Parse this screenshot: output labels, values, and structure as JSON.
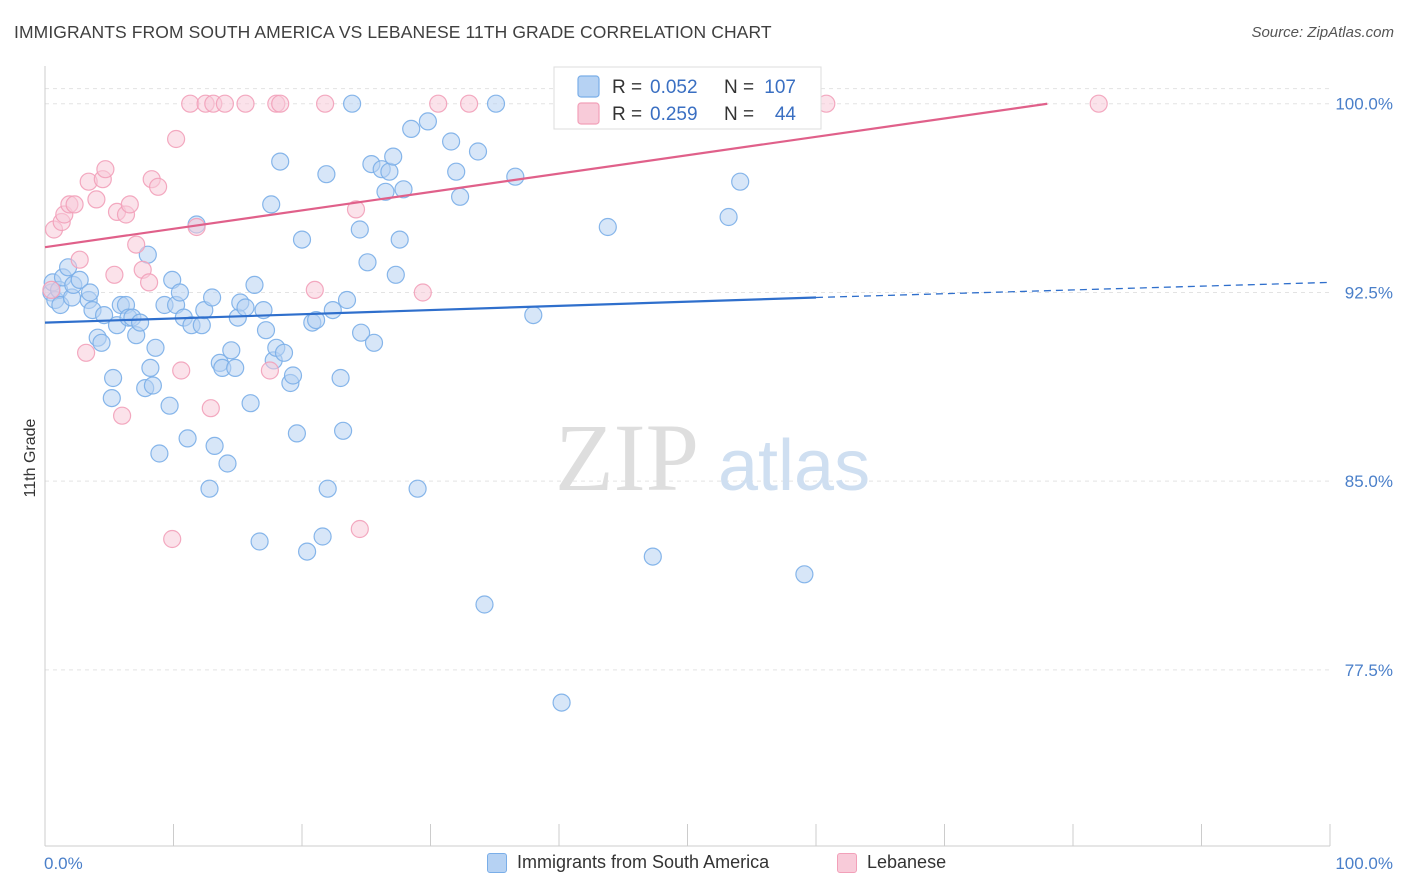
{
  "chart_data": {
    "type": "scatter",
    "title": "IMMIGRANTS FROM SOUTH AMERICA VS LEBANESE 11TH GRADE CORRELATION CHART",
    "source": "Source: ZipAtlas.com",
    "watermark": {
      "zip": "ZIP",
      "atlas": "atlas"
    },
    "ylabel": "11th Grade",
    "xlim": [
      0,
      100
    ],
    "ylim": [
      70.5,
      101.5
    ],
    "yticks": [
      {
        "value": 100.0,
        "label": "100.0%"
      },
      {
        "value": 92.5,
        "label": "92.5%"
      },
      {
        "value": 85.0,
        "label": "85.0%"
      },
      {
        "value": 77.5,
        "label": "77.5%"
      }
    ],
    "xticks": [
      {
        "value": 0,
        "label": "0.0%"
      },
      {
        "value": 100,
        "label": "100.0%"
      }
    ],
    "legend": [
      {
        "r_label": "R =",
        "r_value": "0.052",
        "n_label": "N =",
        "n_value": "107"
      },
      {
        "r_label": "R =",
        "r_value": "0.259",
        "n_label": "N =",
        "n_value": "44"
      }
    ],
    "series": [
      {
        "name": "Immigrants from South America",
        "color": "#7aaee8",
        "fill": "#b6d2f3",
        "line_color": "#2f6fcc",
        "trend": {
          "x0": 0,
          "y0": 91.3,
          "x1": 60,
          "y1": 92.3,
          "dash_x1": 100,
          "dash_y1": 92.9
        },
        "points": [
          [
            0.5,
            92.5
          ],
          [
            0.6,
            92.9
          ],
          [
            0.8,
            92.2
          ],
          [
            1.1,
            92.6
          ],
          [
            1.2,
            92.0
          ],
          [
            1.4,
            93.1
          ],
          [
            1.8,
            93.5
          ],
          [
            2.1,
            92.3
          ],
          [
            2.2,
            92.8
          ],
          [
            2.7,
            93.0
          ],
          [
            3.4,
            92.2
          ],
          [
            3.5,
            92.5
          ],
          [
            3.7,
            91.8
          ],
          [
            4.1,
            90.7
          ],
          [
            4.4,
            90.5
          ],
          [
            4.6,
            91.6
          ],
          [
            5.2,
            88.3
          ],
          [
            5.3,
            89.1
          ],
          [
            5.6,
            91.2
          ],
          [
            5.9,
            92.0
          ],
          [
            6.3,
            92.0
          ],
          [
            6.5,
            91.5
          ],
          [
            6.8,
            91.5
          ],
          [
            7.1,
            90.8
          ],
          [
            7.4,
            91.3
          ],
          [
            7.8,
            88.7
          ],
          [
            8.0,
            94.0
          ],
          [
            8.2,
            89.5
          ],
          [
            8.4,
            88.8
          ],
          [
            8.6,
            90.3
          ],
          [
            8.9,
            86.1
          ],
          [
            9.3,
            92.0
          ],
          [
            9.7,
            88.0
          ],
          [
            9.9,
            93.0
          ],
          [
            10.2,
            92.0
          ],
          [
            10.5,
            92.5
          ],
          [
            10.8,
            91.5
          ],
          [
            11.1,
            86.7
          ],
          [
            11.4,
            91.2
          ],
          [
            11.8,
            95.2
          ],
          [
            12.2,
            91.2
          ],
          [
            12.4,
            91.8
          ],
          [
            12.8,
            84.7
          ],
          [
            13.0,
            92.3
          ],
          [
            13.2,
            86.4
          ],
          [
            13.6,
            89.7
          ],
          [
            13.8,
            89.5
          ],
          [
            14.2,
            85.7
          ],
          [
            14.5,
            90.2
          ],
          [
            14.8,
            89.5
          ],
          [
            15.0,
            91.5
          ],
          [
            15.2,
            92.1
          ],
          [
            15.6,
            91.9
          ],
          [
            16.0,
            88.1
          ],
          [
            16.3,
            92.8
          ],
          [
            16.7,
            82.6
          ],
          [
            17.0,
            91.8
          ],
          [
            17.2,
            91.0
          ],
          [
            17.6,
            96.0
          ],
          [
            17.8,
            89.8
          ],
          [
            18.0,
            90.3
          ],
          [
            18.3,
            97.7
          ],
          [
            18.6,
            90.1
          ],
          [
            19.1,
            88.9
          ],
          [
            19.3,
            89.2
          ],
          [
            19.6,
            86.9
          ],
          [
            20.0,
            94.6
          ],
          [
            20.4,
            82.2
          ],
          [
            20.8,
            91.3
          ],
          [
            21.1,
            91.4
          ],
          [
            21.6,
            82.8
          ],
          [
            21.9,
            97.2
          ],
          [
            22.0,
            84.7
          ],
          [
            22.4,
            91.8
          ],
          [
            23.0,
            89.1
          ],
          [
            23.2,
            87.0
          ],
          [
            23.5,
            92.2
          ],
          [
            23.9,
            100.0
          ],
          [
            24.5,
            95.0
          ],
          [
            24.6,
            90.9
          ],
          [
            25.1,
            93.7
          ],
          [
            25.4,
            97.6
          ],
          [
            25.6,
            90.5
          ],
          [
            26.2,
            97.4
          ],
          [
            26.5,
            96.5
          ],
          [
            26.8,
            97.3
          ],
          [
            27.1,
            97.9
          ],
          [
            27.3,
            93.2
          ],
          [
            27.6,
            94.6
          ],
          [
            27.9,
            96.6
          ],
          [
            28.5,
            99.0
          ],
          [
            29.0,
            84.7
          ],
          [
            29.8,
            99.3
          ],
          [
            31.6,
            98.5
          ],
          [
            32.0,
            97.3
          ],
          [
            32.3,
            96.3
          ],
          [
            33.7,
            98.1
          ],
          [
            34.2,
            80.1
          ],
          [
            35.1,
            100.0
          ],
          [
            36.6,
            97.1
          ],
          [
            38.0,
            91.6
          ],
          [
            40.2,
            76.2
          ],
          [
            43.8,
            95.1
          ],
          [
            47.3,
            82.0
          ],
          [
            53.2,
            95.5
          ],
          [
            54.1,
            96.9
          ],
          [
            59.1,
            81.3
          ]
        ]
      },
      {
        "name": "Lebanese",
        "color": "#f2a0b9",
        "fill": "#f8cbd9",
        "line_color": "#e0608a",
        "trend": {
          "x0": 0,
          "y0": 94.3,
          "x1": 78,
          "y1": 100.0
        },
        "points": [
          [
            0.5,
            92.6
          ],
          [
            0.7,
            95.0
          ],
          [
            1.3,
            95.3
          ],
          [
            1.5,
            95.6
          ],
          [
            1.9,
            96.0
          ],
          [
            2.3,
            96.0
          ],
          [
            2.7,
            93.8
          ],
          [
            3.2,
            90.1
          ],
          [
            3.4,
            96.9
          ],
          [
            4.0,
            96.2
          ],
          [
            4.5,
            97.0
          ],
          [
            4.7,
            97.4
          ],
          [
            5.4,
            93.2
          ],
          [
            5.6,
            95.7
          ],
          [
            6.0,
            87.6
          ],
          [
            6.3,
            95.6
          ],
          [
            6.6,
            96.0
          ],
          [
            7.1,
            94.4
          ],
          [
            7.6,
            93.4
          ],
          [
            8.1,
            92.9
          ],
          [
            8.3,
            97.0
          ],
          [
            8.8,
            96.7
          ],
          [
            9.9,
            82.7
          ],
          [
            10.2,
            98.6
          ],
          [
            10.6,
            89.4
          ],
          [
            11.3,
            100.0
          ],
          [
            11.8,
            95.1
          ],
          [
            12.5,
            100.0
          ],
          [
            12.9,
            87.9
          ],
          [
            13.1,
            100.0
          ],
          [
            14.0,
            100.0
          ],
          [
            15.6,
            100.0
          ],
          [
            17.5,
            89.4
          ],
          [
            18.0,
            100.0
          ],
          [
            18.3,
            100.0
          ],
          [
            21.0,
            92.6
          ],
          [
            21.8,
            100.0
          ],
          [
            24.2,
            95.8
          ],
          [
            24.5,
            83.1
          ],
          [
            29.4,
            92.5
          ],
          [
            30.6,
            100.0
          ],
          [
            33.0,
            100.0
          ],
          [
            60.8,
            100.0
          ],
          [
            82.0,
            100.0
          ]
        ]
      }
    ]
  }
}
